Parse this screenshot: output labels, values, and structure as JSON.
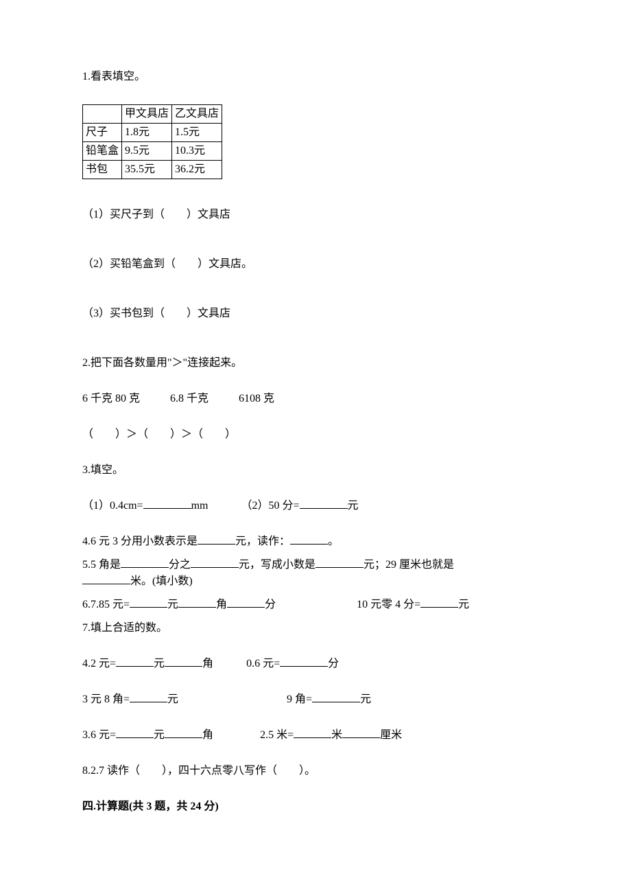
{
  "q1": {
    "title": "1.看表填空。",
    "table": {
      "cols": [
        "",
        "甲文具店",
        "乙文具店"
      ],
      "rows": [
        [
          "尺子",
          "1.8元",
          "1.5元"
        ],
        [
          "铅笔盒",
          "9.5元",
          "10.3元"
        ],
        [
          "书包",
          "35.5元",
          "36.2元"
        ]
      ]
    },
    "sub1": "（1）买尺子到（　　）文具店",
    "sub2": "（2）买铅笔盒到（　　）文具店。",
    "sub3": "（3）买书包到（　　）文具店"
  },
  "q2": {
    "title": "2.把下面各数量用\"＞\"连接起来。",
    "line1_a": "6 千克 80 克",
    "line1_b": "6.8 千克",
    "line1_c": "6108 克",
    "line2": "（　　）＞（　　）＞（　　）"
  },
  "q3": {
    "title": "3.填空。",
    "sub1_a": "（1）0.4cm=",
    "sub1_b": "mm",
    "sub1_c": "（2）50 分=",
    "sub1_d": "元"
  },
  "q4": {
    "a": "4.6 元 3 分用小数表示是",
    "b": "元，读作：",
    "c": "。"
  },
  "q5": {
    "a": "5.5 角是",
    "b": "分之",
    "c": "元，写成小数是",
    "d": "元；29 厘米也就是",
    "e": "米。(填小数)"
  },
  "q6": {
    "a": "6.7.85 元=",
    "b": "元",
    "c": "角",
    "d": "分",
    "e": "10 元零 4 分=",
    "f": "元"
  },
  "q7": {
    "title": "7.填上合适的数。",
    "l1a": "4.2 元=",
    "l1b": "元",
    "l1c": "角",
    "l1d": "0.6 元=",
    "l1e": "分",
    "l2a": "3 元 8 角=",
    "l2b": "元",
    "l2c": "9 角=",
    "l2d": "元",
    "l3a": "3.6 元=",
    "l3b": "元",
    "l3c": "角",
    "l3d": "2.5 米=",
    "l3e": "米",
    "l3f": "厘米"
  },
  "q8": "8.2.7 读作（　　），四十六点零八写作（　　）。",
  "section4": "四.计算题(共 3 题，共 24 分)"
}
